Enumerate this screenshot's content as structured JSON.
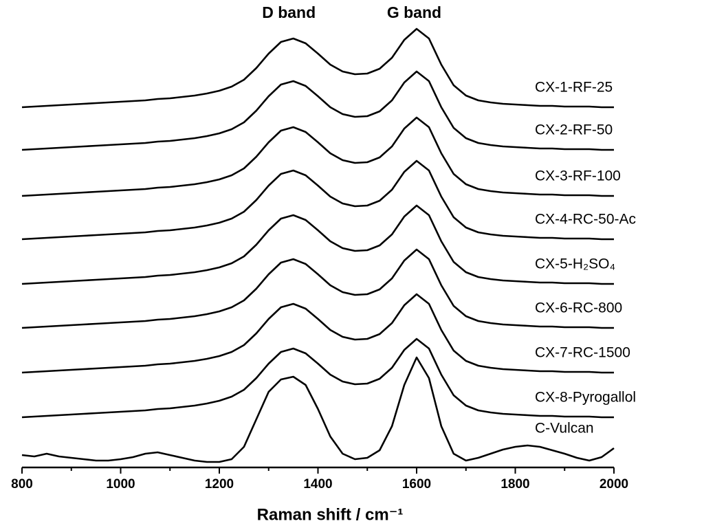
{
  "chart_data": {
    "type": "line",
    "x_label": "Raman shift / cm⁻¹",
    "annotations": [
      {
        "text": "D band",
        "x": 1340
      },
      {
        "text": "G band",
        "x": 1595
      }
    ],
    "xlim": [
      800,
      2000
    ],
    "xticks": [
      800,
      1000,
      1200,
      1400,
      1600,
      1800,
      2000
    ],
    "xminorticks": [
      900,
      1100,
      1300,
      1500,
      1700,
      1900
    ],
    "ylim": [
      0,
      660
    ],
    "x": [
      800,
      825,
      850,
      875,
      900,
      925,
      950,
      975,
      1000,
      1025,
      1050,
      1075,
      1100,
      1125,
      1150,
      1175,
      1200,
      1225,
      1250,
      1275,
      1300,
      1325,
      1350,
      1375,
      1400,
      1425,
      1450,
      1475,
      1500,
      1525,
      1550,
      1575,
      1600,
      1625,
      1650,
      1675,
      1700,
      1725,
      1750,
      1775,
      1800,
      1825,
      1850,
      1875,
      1900,
      1925,
      1950,
      1975,
      2000
    ],
    "series": [
      {
        "name": "CX-1-RF-25",
        "color": "#000000",
        "values": [
          524,
          525,
          526,
          527,
          528,
          529,
          530,
          531,
          532,
          533,
          534,
          536,
          537,
          539,
          541,
          544,
          548,
          554,
          564,
          581,
          602,
          619,
          624,
          617,
          602,
          586,
          576,
          572,
          573,
          580,
          596,
          622,
          638,
          624,
          586,
          556,
          541,
          534,
          531,
          529,
          528,
          527,
          526,
          526,
          525,
          525,
          525,
          524,
          524
        ]
      },
      {
        "name": "CX-2-RF-50",
        "color": "#000000",
        "values": [
          462,
          463,
          464,
          465,
          466,
          467,
          468,
          469,
          470,
          471,
          472,
          474,
          475,
          477,
          479,
          482,
          486,
          492,
          502,
          519,
          540,
          557,
          562,
          555,
          540,
          524,
          514,
          510,
          511,
          518,
          534,
          560,
          576,
          562,
          524,
          494,
          479,
          472,
          469,
          467,
          466,
          465,
          464,
          464,
          463,
          463,
          463,
          462,
          462
        ]
      },
      {
        "name": "CX-3-RF-100",
        "color": "#000000",
        "values": [
          395,
          396,
          397,
          398,
          399,
          400,
          401,
          402,
          403,
          404,
          405,
          407,
          408,
          410,
          412,
          415,
          419,
          425,
          435,
          452,
          473,
          490,
          495,
          488,
          473,
          457,
          447,
          443,
          444,
          451,
          467,
          493,
          509,
          495,
          457,
          427,
          412,
          405,
          402,
          400,
          399,
          398,
          397,
          397,
          396,
          396,
          396,
          395,
          395
        ]
      },
      {
        "name": "CX-4-RC-50-Ac",
        "color": "#000000",
        "values": [
          332,
          333,
          334,
          335,
          336,
          337,
          338,
          339,
          340,
          341,
          342,
          344,
          345,
          347,
          349,
          352,
          356,
          362,
          372,
          389,
          410,
          427,
          432,
          425,
          410,
          394,
          384,
          380,
          381,
          388,
          404,
          430,
          446,
          432,
          394,
          364,
          349,
          342,
          339,
          337,
          336,
          335,
          334,
          334,
          333,
          333,
          333,
          332,
          332
        ]
      },
      {
        "name": "CX-5-H₂SO₄",
        "color": "#000000",
        "values": [
          267,
          268,
          269,
          270,
          271,
          272,
          273,
          274,
          275,
          276,
          277,
          279,
          280,
          282,
          284,
          287,
          291,
          297,
          307,
          324,
          345,
          362,
          367,
          360,
          345,
          329,
          319,
          315,
          316,
          323,
          339,
          365,
          381,
          367,
          329,
          299,
          284,
          277,
          274,
          272,
          271,
          270,
          269,
          269,
          268,
          268,
          268,
          267,
          267
        ]
      },
      {
        "name": "CX-6-RC-800",
        "color": "#000000",
        "values": [
          203,
          204,
          205,
          206,
          207,
          208,
          209,
          210,
          211,
          212,
          213,
          215,
          216,
          218,
          220,
          223,
          227,
          233,
          243,
          260,
          281,
          298,
          303,
          296,
          281,
          265,
          255,
          251,
          252,
          259,
          275,
          301,
          317,
          303,
          265,
          235,
          220,
          213,
          210,
          208,
          207,
          206,
          205,
          205,
          204,
          204,
          204,
          203,
          203
        ]
      },
      {
        "name": "CX-7-RC-1500",
        "color": "#000000",
        "values": [
          138,
          139,
          140,
          141,
          142,
          143,
          144,
          145,
          146,
          147,
          148,
          150,
          151,
          153,
          155,
          158,
          162,
          168,
          178,
          195,
          216,
          233,
          238,
          231,
          216,
          200,
          190,
          186,
          187,
          194,
          210,
          236,
          252,
          238,
          200,
          170,
          155,
          148,
          145,
          143,
          142,
          141,
          140,
          140,
          139,
          139,
          139,
          138,
          138
        ]
      },
      {
        "name": "CX-8-Pyrogallol",
        "color": "#000000",
        "values": [
          73,
          74,
          75,
          76,
          77,
          78,
          79,
          80,
          81,
          82,
          83,
          85,
          86,
          88,
          90,
          93,
          97,
          103,
          113,
          130,
          151,
          168,
          173,
          166,
          151,
          135,
          125,
          121,
          122,
          129,
          145,
          171,
          187,
          173,
          135,
          105,
          90,
          83,
          80,
          78,
          77,
          76,
          75,
          75,
          74,
          74,
          74,
          73,
          73
        ]
      },
      {
        "name": "C-Vulcan",
        "color": "#000000",
        "values": [
          18,
          16,
          20,
          16,
          14,
          12,
          10,
          10,
          12,
          15,
          20,
          22,
          18,
          14,
          10,
          8,
          8,
          12,
          30,
          70,
          110,
          128,
          132,
          120,
          85,
          45,
          20,
          12,
          14,
          25,
          60,
          120,
          160,
          130,
          60,
          20,
          10,
          14,
          20,
          26,
          30,
          32,
          30,
          25,
          20,
          14,
          10,
          15,
          28
        ]
      }
    ]
  }
}
